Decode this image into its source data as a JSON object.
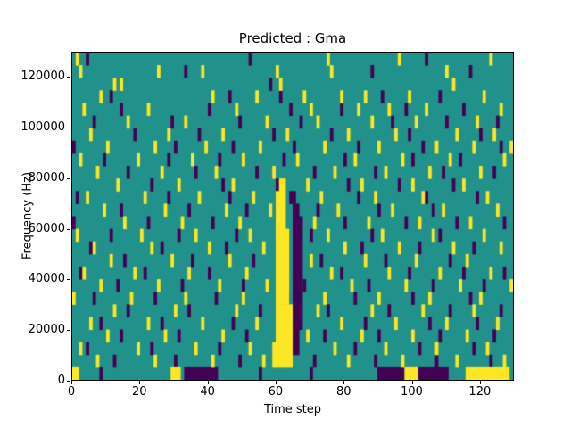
{
  "chart_data": {
    "type": "heatmap",
    "title": "Predicted : Gma",
    "xlabel": "Time step",
    "ylabel": "Frequency (Hz)",
    "xmax": 130,
    "ymax": 130000,
    "ncols": 130,
    "nrows": 26,
    "hz_per_row": 5000,
    "xticks": [
      0,
      20,
      40,
      60,
      80,
      100,
      120
    ],
    "yticks": [
      0,
      20000,
      40000,
      60000,
      80000,
      100000,
      120000
    ],
    "legend": "none",
    "grid": false,
    "colors": {
      "background": "#21918c",
      "yellow": "#fde725",
      "purple": "#440154"
    },
    "cells": {
      "yellow": [
        [
          59,
          64,
          1
        ],
        [
          59,
          64,
          2
        ],
        [
          60,
          64,
          3
        ],
        [
          60,
          64,
          4
        ],
        [
          60,
          64,
          5
        ],
        [
          60,
          63,
          6
        ],
        [
          60,
          63,
          7
        ],
        [
          60,
          63,
          8
        ],
        [
          60,
          63,
          9
        ],
        [
          60,
          63,
          10
        ],
        [
          60,
          63,
          11
        ],
        [
          60,
          62,
          12
        ],
        [
          60,
          62,
          13
        ],
        [
          60,
          62,
          14
        ],
        [
          61,
          62,
          15
        ],
        [
          29,
          31,
          0
        ],
        [
          116,
          128,
          0
        ],
        [
          98,
          101,
          0
        ],
        [
          0,
          1,
          0
        ],
        [
          1,
          25
        ],
        [
          2,
          24
        ],
        [
          12,
          23
        ],
        [
          14,
          23
        ],
        [
          25,
          24
        ],
        [
          38,
          24
        ],
        [
          60,
          24
        ],
        [
          61,
          23
        ],
        [
          75,
          25
        ],
        [
          76,
          24
        ],
        [
          96,
          25
        ],
        [
          110,
          24
        ],
        [
          112,
          23
        ],
        [
          123,
          25
        ],
        [
          8,
          22
        ],
        [
          41,
          22
        ],
        [
          54,
          22
        ],
        [
          68,
          22
        ],
        [
          79,
          22
        ],
        [
          86,
          22
        ],
        [
          99,
          22
        ],
        [
          121,
          22
        ],
        [
          3,
          21
        ],
        [
          22,
          21
        ],
        [
          48,
          21
        ],
        [
          70,
          21
        ],
        [
          84,
          21
        ],
        [
          93,
          21
        ],
        [
          104,
          21
        ],
        [
          126,
          21
        ],
        [
          16,
          20
        ],
        [
          33,
          20
        ],
        [
          57,
          20
        ],
        [
          72,
          20
        ],
        [
          88,
          20
        ],
        [
          101,
          20
        ],
        [
          119,
          20
        ],
        [
          5,
          19
        ],
        [
          28,
          19
        ],
        [
          44,
          19
        ],
        [
          63,
          19
        ],
        [
          81,
          19
        ],
        [
          95,
          19
        ],
        [
          113,
          19
        ],
        [
          124,
          19
        ],
        [
          10,
          18
        ],
        [
          24,
          18
        ],
        [
          39,
          18
        ],
        [
          55,
          18
        ],
        [
          74,
          18
        ],
        [
          90,
          18
        ],
        [
          107,
          18
        ],
        [
          118,
          18
        ],
        [
          129,
          18
        ],
        [
          2,
          17
        ],
        [
          19,
          17
        ],
        [
          35,
          17
        ],
        [
          50,
          17
        ],
        [
          66,
          17
        ],
        [
          83,
          17
        ],
        [
          97,
          17
        ],
        [
          111,
          17
        ],
        [
          127,
          17
        ],
        [
          7,
          16
        ],
        [
          26,
          16
        ],
        [
          42,
          16
        ],
        [
          59,
          16
        ],
        [
          77,
          16
        ],
        [
          92,
          16
        ],
        [
          105,
          16
        ],
        [
          120,
          16
        ],
        [
          13,
          15
        ],
        [
          31,
          15
        ],
        [
          47,
          15
        ],
        [
          69,
          15
        ],
        [
          85,
          15
        ],
        [
          100,
          15
        ],
        [
          115,
          15
        ],
        [
          4,
          14
        ],
        [
          21,
          14
        ],
        [
          37,
          14
        ],
        [
          53,
          14
        ],
        [
          73,
          14
        ],
        [
          89,
          14
        ],
        [
          103,
          14
        ],
        [
          122,
          14
        ],
        [
          9,
          13
        ],
        [
          27,
          13
        ],
        [
          45,
          13
        ],
        [
          58,
          13
        ],
        [
          78,
          13
        ],
        [
          94,
          13
        ],
        [
          109,
          13
        ],
        [
          125,
          13
        ],
        [
          15,
          12
        ],
        [
          32,
          12
        ],
        [
          49,
          12
        ],
        [
          71,
          12
        ],
        [
          87,
          12
        ],
        [
          102,
          12
        ],
        [
          117,
          12
        ],
        [
          1,
          11
        ],
        [
          20,
          11
        ],
        [
          36,
          11
        ],
        [
          52,
          11
        ],
        [
          75,
          11
        ],
        [
          91,
          11
        ],
        [
          106,
          11
        ],
        [
          121,
          11
        ],
        [
          6,
          10
        ],
        [
          23,
          10
        ],
        [
          40,
          10
        ],
        [
          56,
          10
        ],
        [
          80,
          10
        ],
        [
          96,
          10
        ],
        [
          112,
          10
        ],
        [
          126,
          10
        ],
        [
          11,
          9
        ],
        [
          29,
          9
        ],
        [
          46,
          9
        ],
        [
          70,
          9
        ],
        [
          86,
          9
        ],
        [
          101,
          9
        ],
        [
          116,
          9
        ],
        [
          3,
          8
        ],
        [
          18,
          8
        ],
        [
          34,
          8
        ],
        [
          51,
          8
        ],
        [
          76,
          8
        ],
        [
          93,
          8
        ],
        [
          108,
          8
        ],
        [
          123,
          8
        ],
        [
          8,
          7
        ],
        [
          25,
          7
        ],
        [
          43,
          7
        ],
        [
          57,
          7
        ],
        [
          82,
          7
        ],
        [
          98,
          7
        ],
        [
          114,
          7
        ],
        [
          129,
          7
        ],
        [
          0,
          6
        ],
        [
          17,
          6
        ],
        [
          33,
          6
        ],
        [
          50,
          6
        ],
        [
          74,
          6
        ],
        [
          90,
          6
        ],
        [
          105,
          6
        ],
        [
          120,
          6
        ],
        [
          12,
          5
        ],
        [
          30,
          5
        ],
        [
          48,
          5
        ],
        [
          72,
          5
        ],
        [
          88,
          5
        ],
        [
          103,
          5
        ],
        [
          118,
          5
        ],
        [
          5,
          4
        ],
        [
          22,
          4
        ],
        [
          38,
          4
        ],
        [
          54,
          4
        ],
        [
          79,
          4
        ],
        [
          95,
          4
        ],
        [
          110,
          4
        ],
        [
          125,
          4
        ],
        [
          10,
          3
        ],
        [
          27,
          3
        ],
        [
          44,
          3
        ],
        [
          69,
          3
        ],
        [
          85,
          3
        ],
        [
          100,
          3
        ],
        [
          116,
          3
        ],
        [
          2,
          2
        ],
        [
          19,
          2
        ],
        [
          36,
          2
        ],
        [
          52,
          2
        ],
        [
          77,
          2
        ],
        [
          92,
          2
        ],
        [
          107,
          2
        ],
        [
          122,
          2
        ],
        [
          7,
          1
        ],
        [
          24,
          1
        ],
        [
          41,
          1
        ],
        [
          56,
          1
        ],
        [
          81,
          1
        ],
        [
          97,
          1
        ],
        [
          113,
          1
        ],
        [
          127,
          1
        ]
      ],
      "purple": [
        [
          65,
          66,
          2
        ],
        [
          65,
          66,
          3
        ],
        [
          65,
          67,
          4
        ],
        [
          65,
          67,
          5
        ],
        [
          65,
          67,
          6
        ],
        [
          65,
          67,
          7
        ],
        [
          65,
          67,
          8
        ],
        [
          65,
          67,
          9
        ],
        [
          65,
          67,
          10
        ],
        [
          65,
          67,
          11
        ],
        [
          65,
          67,
          12
        ],
        [
          65,
          66,
          13
        ],
        [
          65,
          14
        ],
        [
          33,
          42,
          0
        ],
        [
          90,
          97,
          0
        ],
        [
          102,
          110,
          0
        ],
        [
          8,
          0
        ],
        [
          55,
          0
        ],
        [
          70,
          0
        ],
        [
          4,
          25
        ],
        [
          33,
          24
        ],
        [
          52,
          25
        ],
        [
          58,
          23
        ],
        [
          88,
          24
        ],
        [
          104,
          25
        ],
        [
          117,
          24
        ],
        [
          11,
          22
        ],
        [
          46,
          22
        ],
        [
          61,
          22
        ],
        [
          91,
          22
        ],
        [
          108,
          22
        ],
        [
          14,
          21
        ],
        [
          40,
          21
        ],
        [
          64,
          21
        ],
        [
          79,
          21
        ],
        [
          98,
          21
        ],
        [
          115,
          21
        ],
        [
          6,
          20
        ],
        [
          29,
          20
        ],
        [
          49,
          20
        ],
        [
          67,
          20
        ],
        [
          94,
          20
        ],
        [
          110,
          20
        ],
        [
          125,
          20
        ],
        [
          18,
          19
        ],
        [
          37,
          19
        ],
        [
          59,
          19
        ],
        [
          76,
          19
        ],
        [
          99,
          19
        ],
        [
          120,
          19
        ],
        [
          0,
          18
        ],
        [
          30,
          18
        ],
        [
          47,
          18
        ],
        [
          65,
          18
        ],
        [
          84,
          18
        ],
        [
          103,
          18
        ],
        [
          126,
          18
        ],
        [
          9,
          17
        ],
        [
          28,
          17
        ],
        [
          43,
          17
        ],
        [
          62,
          17
        ],
        [
          80,
          17
        ],
        [
          100,
          17
        ],
        [
          114,
          17
        ],
        [
          16,
          16
        ],
        [
          36,
          16
        ],
        [
          54,
          16
        ],
        [
          71,
          16
        ],
        [
          89,
          16
        ],
        [
          109,
          16
        ],
        [
          124,
          16
        ],
        [
          23,
          15
        ],
        [
          44,
          15
        ],
        [
          60,
          15
        ],
        [
          81,
          15
        ],
        [
          96,
          15
        ],
        [
          112,
          15
        ],
        [
          1,
          14
        ],
        [
          28,
          14
        ],
        [
          46,
          14
        ],
        [
          64,
          14
        ],
        [
          84,
          14
        ],
        [
          104,
          14
        ],
        [
          119,
          14
        ],
        [
          14,
          13
        ],
        [
          34,
          13
        ],
        [
          51,
          13
        ],
        [
          72,
          13
        ],
        [
          90,
          13
        ],
        [
          106,
          13
        ],
        [
          0,
          12
        ],
        [
          22,
          12
        ],
        [
          41,
          12
        ],
        [
          61,
          12
        ],
        [
          80,
          12
        ],
        [
          98,
          12
        ],
        [
          113,
          12
        ],
        [
          127,
          12
        ],
        [
          11,
          11
        ],
        [
          31,
          11
        ],
        [
          48,
          11
        ],
        [
          70,
          11
        ],
        [
          88,
          11
        ],
        [
          108,
          11
        ],
        [
          5,
          10
        ],
        [
          26,
          10
        ],
        [
          45,
          10
        ],
        [
          66,
          10
        ],
        [
          85,
          10
        ],
        [
          102,
          10
        ],
        [
          118,
          10
        ],
        [
          15,
          9
        ],
        [
          35,
          9
        ],
        [
          53,
          9
        ],
        [
          73,
          9
        ],
        [
          92,
          9
        ],
        [
          111,
          9
        ],
        [
          2,
          8
        ],
        [
          21,
          8
        ],
        [
          40,
          8
        ],
        [
          60,
          8
        ],
        [
          79,
          8
        ],
        [
          99,
          8
        ],
        [
          115,
          8
        ],
        [
          127,
          8
        ],
        [
          13,
          7
        ],
        [
          32,
          7
        ],
        [
          50,
          7
        ],
        [
          68,
          7
        ],
        [
          87,
          7
        ],
        [
          106,
          7
        ],
        [
          121,
          7
        ],
        [
          6,
          6
        ],
        [
          24,
          6
        ],
        [
          42,
          6
        ],
        [
          63,
          6
        ],
        [
          83,
          6
        ],
        [
          100,
          6
        ],
        [
          117,
          6
        ],
        [
          16,
          5
        ],
        [
          34,
          5
        ],
        [
          55,
          5
        ],
        [
          75,
          5
        ],
        [
          93,
          5
        ],
        [
          111,
          5
        ],
        [
          126,
          5
        ],
        [
          8,
          4
        ],
        [
          26,
          4
        ],
        [
          47,
          4
        ],
        [
          65,
          4
        ],
        [
          86,
          4
        ],
        [
          105,
          4
        ],
        [
          119,
          4
        ],
        [
          14,
          3
        ],
        [
          31,
          3
        ],
        [
          51,
          3
        ],
        [
          74,
          3
        ],
        [
          90,
          3
        ],
        [
          108,
          3
        ],
        [
          124,
          3
        ],
        [
          4,
          2
        ],
        [
          23,
          2
        ],
        [
          43,
          2
        ],
        [
          64,
          2
        ],
        [
          83,
          2
        ],
        [
          102,
          2
        ],
        [
          118,
          2
        ],
        [
          12,
          1
        ],
        [
          30,
          1
        ],
        [
          49,
          1
        ],
        [
          71,
          1
        ],
        [
          89,
          1
        ],
        [
          107,
          1
        ],
        [
          123,
          1
        ]
      ]
    }
  }
}
